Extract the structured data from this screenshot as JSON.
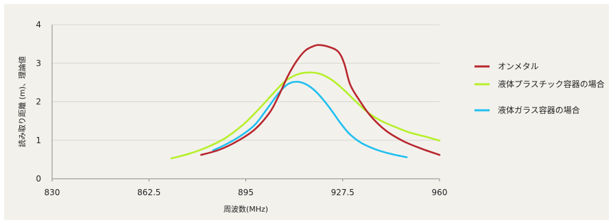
{
  "chart_data": {
    "type": "line",
    "xlabel": "周波数(MHz)",
    "ylabel": "読み取り距離 (m)、理論値",
    "xlim": [
      830,
      960
    ],
    "ylim": [
      0,
      4
    ],
    "x_ticks": [
      "830",
      "862.5",
      "895",
      "927.5",
      "960"
    ],
    "y_ticks": [
      "0",
      "1",
      "2",
      "3",
      "4"
    ],
    "grid": "horizontal",
    "legend_position": "right",
    "series": [
      {
        "name": "オンメタル",
        "color": "#b8272e",
        "points": [
          [
            880,
            0.62
          ],
          [
            886,
            0.75
          ],
          [
            892,
            0.97
          ],
          [
            898,
            1.28
          ],
          [
            903,
            1.72
          ],
          [
            906,
            2.15
          ],
          [
            909,
            2.65
          ],
          [
            912,
            3.05
          ],
          [
            915,
            3.33
          ],
          [
            918,
            3.45
          ],
          [
            920,
            3.47
          ],
          [
            923,
            3.42
          ],
          [
            926,
            3.3
          ],
          [
            928,
            3.0
          ],
          [
            930,
            2.45
          ],
          [
            933,
            2.05
          ],
          [
            937,
            1.62
          ],
          [
            942,
            1.25
          ],
          [
            948,
            0.97
          ],
          [
            954,
            0.78
          ],
          [
            960,
            0.62
          ]
        ]
      },
      {
        "name": "液体プラスチック容器の場合",
        "color": "#b5f02a",
        "points": [
          [
            870,
            0.53
          ],
          [
            876,
            0.65
          ],
          [
            882,
            0.82
          ],
          [
            888,
            1.05
          ],
          [
            894,
            1.4
          ],
          [
            899,
            1.78
          ],
          [
            904,
            2.2
          ],
          [
            908,
            2.52
          ],
          [
            912,
            2.7
          ],
          [
            916,
            2.76
          ],
          [
            920,
            2.72
          ],
          [
            924,
            2.56
          ],
          [
            928,
            2.3
          ],
          [
            932,
            2.0
          ],
          [
            936,
            1.72
          ],
          [
            940,
            1.52
          ],
          [
            945,
            1.35
          ],
          [
            950,
            1.2
          ],
          [
            955,
            1.1
          ],
          [
            960,
            0.99
          ]
        ]
      },
      {
        "name": "液体ガラス容器の場合",
        "color": "#1ebff0",
        "points": [
          [
            884,
            0.74
          ],
          [
            888,
            0.88
          ],
          [
            893,
            1.1
          ],
          [
            898,
            1.4
          ],
          [
            902,
            1.8
          ],
          [
            906,
            2.22
          ],
          [
            909,
            2.45
          ],
          [
            912,
            2.52
          ],
          [
            915,
            2.46
          ],
          [
            918,
            2.3
          ],
          [
            921,
            2.05
          ],
          [
            924,
            1.75
          ],
          [
            927,
            1.42
          ],
          [
            930,
            1.15
          ],
          [
            934,
            0.92
          ],
          [
            939,
            0.75
          ],
          [
            944,
            0.64
          ],
          [
            949,
            0.56
          ]
        ]
      }
    ]
  }
}
